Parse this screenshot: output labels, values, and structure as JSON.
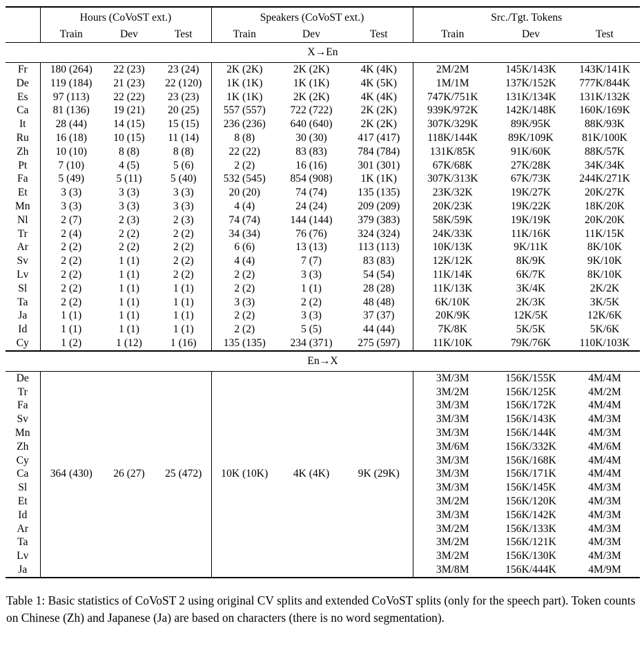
{
  "colors": {
    "text": "#000000",
    "background": "#ffffff",
    "rule": "#000000"
  },
  "table": {
    "column_groups": [
      "Hours (CoVoST ext.)",
      "Speakers (CoVoST ext.)",
      "Src./Tgt. Tokens"
    ],
    "subheaders": [
      "Train",
      "Dev",
      "Test",
      "Train",
      "Dev",
      "Test",
      "Train",
      "Dev",
      "Test"
    ],
    "sections": [
      {
        "title": "X→En",
        "rows": [
          {
            "lang": "Fr",
            "hours": [
              "180 (264)",
              "22 (23)",
              "23 (24)"
            ],
            "speakers": [
              "2K (2K)",
              "2K (2K)",
              "4K (4K)"
            ],
            "tokens": [
              "2M/2M",
              "145K/143K",
              "143K/141K"
            ]
          },
          {
            "lang": "De",
            "hours": [
              "119 (184)",
              "21 (23)",
              "22 (120)"
            ],
            "speakers": [
              "1K (1K)",
              "1K (1K)",
              "4K (5K)"
            ],
            "tokens": [
              "1M/1M",
              "137K/152K",
              "777K/844K"
            ]
          },
          {
            "lang": "Es",
            "hours": [
              "97 (113)",
              "22 (22)",
              "23 (23)"
            ],
            "speakers": [
              "1K (1K)",
              "2K (2K)",
              "4K (4K)"
            ],
            "tokens": [
              "747K/751K",
              "131K/134K",
              "131K/132K"
            ]
          },
          {
            "lang": "Ca",
            "hours": [
              "81 (136)",
              "19 (21)",
              "20 (25)"
            ],
            "speakers": [
              "557 (557)",
              "722 (722)",
              "2K (2K)"
            ],
            "tokens": [
              "939K/972K",
              "142K/148K",
              "160K/169K"
            ]
          },
          {
            "lang": "It",
            "hours": [
              "28 (44)",
              "14 (15)",
              "15 (15)"
            ],
            "speakers": [
              "236 (236)",
              "640 (640)",
              "2K (2K)"
            ],
            "tokens": [
              "307K/329K",
              "89K/95K",
              "88K/93K"
            ]
          },
          {
            "lang": "Ru",
            "hours": [
              "16 (18)",
              "10 (15)",
              "11 (14)"
            ],
            "speakers": [
              "8 (8)",
              "30 (30)",
              "417 (417)"
            ],
            "tokens": [
              "118K/144K",
              "89K/109K",
              "81K/100K"
            ]
          },
          {
            "lang": "Zh",
            "hours": [
              "10 (10)",
              "8 (8)",
              "8 (8)"
            ],
            "speakers": [
              "22 (22)",
              "83 (83)",
              "784 (784)"
            ],
            "tokens": [
              "131K/85K",
              "91K/60K",
              "88K/57K"
            ]
          },
          {
            "lang": "Pt",
            "hours": [
              "7 (10)",
              "4 (5)",
              "5 (6)"
            ],
            "speakers": [
              "2 (2)",
              "16 (16)",
              "301 (301)"
            ],
            "tokens": [
              "67K/68K",
              "27K/28K",
              "34K/34K"
            ]
          },
          {
            "lang": "Fa",
            "hours": [
              "5 (49)",
              "5 (11)",
              "5 (40)"
            ],
            "speakers": [
              "532 (545)",
              "854 (908)",
              "1K (1K)"
            ],
            "tokens": [
              "307K/313K",
              "67K/73K",
              "244K/271K"
            ]
          },
          {
            "lang": "Et",
            "hours": [
              "3 (3)",
              "3 (3)",
              "3 (3)"
            ],
            "speakers": [
              "20 (20)",
              "74 (74)",
              "135 (135)"
            ],
            "tokens": [
              "23K/32K",
              "19K/27K",
              "20K/27K"
            ]
          },
          {
            "lang": "Mn",
            "hours": [
              "3 (3)",
              "3 (3)",
              "3 (3)"
            ],
            "speakers": [
              "4 (4)",
              "24 (24)",
              "209 (209)"
            ],
            "tokens": [
              "20K/23K",
              "19K/22K",
              "18K/20K"
            ]
          },
          {
            "lang": "Nl",
            "hours": [
              "2 (7)",
              "2 (3)",
              "2 (3)"
            ],
            "speakers": [
              "74 (74)",
              "144 (144)",
              "379 (383)"
            ],
            "tokens": [
              "58K/59K",
              "19K/19K",
              "20K/20K"
            ]
          },
          {
            "lang": "Tr",
            "hours": [
              "2 (4)",
              "2 (2)",
              "2 (2)"
            ],
            "speakers": [
              "34 (34)",
              "76 (76)",
              "324 (324)"
            ],
            "tokens": [
              "24K/33K",
              "11K/16K",
              "11K/15K"
            ]
          },
          {
            "lang": "Ar",
            "hours": [
              "2 (2)",
              "2 (2)",
              "2 (2)"
            ],
            "speakers": [
              "6 (6)",
              "13 (13)",
              "113 (113)"
            ],
            "tokens": [
              "10K/13K",
              "9K/11K",
              "8K/10K"
            ]
          },
          {
            "lang": "Sv",
            "hours": [
              "2 (2)",
              "1 (1)",
              "2 (2)"
            ],
            "speakers": [
              "4 (4)",
              "7 (7)",
              "83 (83)"
            ],
            "tokens": [
              "12K/12K",
              "8K/9K",
              "9K/10K"
            ]
          },
          {
            "lang": "Lv",
            "hours": [
              "2 (2)",
              "1 (1)",
              "2 (2)"
            ],
            "speakers": [
              "2 (2)",
              "3 (3)",
              "54 (54)"
            ],
            "tokens": [
              "11K/14K",
              "6K/7K",
              "8K/10K"
            ]
          },
          {
            "lang": "Sl",
            "hours": [
              "2 (2)",
              "1 (1)",
              "1 (1)"
            ],
            "speakers": [
              "2 (2)",
              "1 (1)",
              "28 (28)"
            ],
            "tokens": [
              "11K/13K",
              "3K/4K",
              "2K/2K"
            ]
          },
          {
            "lang": "Ta",
            "hours": [
              "2 (2)",
              "1 (1)",
              "1 (1)"
            ],
            "speakers": [
              "3 (3)",
              "2 (2)",
              "48 (48)"
            ],
            "tokens": [
              "6K/10K",
              "2K/3K",
              "3K/5K"
            ]
          },
          {
            "lang": "Ja",
            "hours": [
              "1 (1)",
              "1 (1)",
              "1 (1)"
            ],
            "speakers": [
              "2 (2)",
              "3 (3)",
              "37 (37)"
            ],
            "tokens": [
              "20K/9K",
              "12K/5K",
              "12K/6K"
            ]
          },
          {
            "lang": "Id",
            "hours": [
              "1 (1)",
              "1 (1)",
              "1 (1)"
            ],
            "speakers": [
              "2 (2)",
              "5 (5)",
              "44 (44)"
            ],
            "tokens": [
              "7K/8K",
              "5K/5K",
              "5K/6K"
            ]
          },
          {
            "lang": "Cy",
            "hours": [
              "1 (2)",
              "1 (12)",
              "1 (16)"
            ],
            "speakers": [
              "135 (135)",
              "234 (371)",
              "275 (597)"
            ],
            "tokens": [
              "11K/10K",
              "79K/76K",
              "110K/103K"
            ]
          }
        ]
      },
      {
        "title": "En→X",
        "rows": [
          {
            "lang": "De",
            "hours": [
              "",
              "",
              ""
            ],
            "speakers": [
              "",
              "",
              ""
            ],
            "tokens": [
              "3M/3M",
              "156K/155K",
              "4M/4M"
            ]
          },
          {
            "lang": "Tr",
            "hours": [
              "",
              "",
              ""
            ],
            "speakers": [
              "",
              "",
              ""
            ],
            "tokens": [
              "3M/2M",
              "156K/125K",
              "4M/2M"
            ]
          },
          {
            "lang": "Fa",
            "hours": [
              "",
              "",
              ""
            ],
            "speakers": [
              "",
              "",
              ""
            ],
            "tokens": [
              "3M/3M",
              "156K/172K",
              "4M/4M"
            ]
          },
          {
            "lang": "Sv",
            "hours": [
              "",
              "",
              ""
            ],
            "speakers": [
              "",
              "",
              ""
            ],
            "tokens": [
              "3M/3M",
              "156K/143K",
              "4M/3M"
            ]
          },
          {
            "lang": "Mn",
            "hours": [
              "",
              "",
              ""
            ],
            "speakers": [
              "",
              "",
              ""
            ],
            "tokens": [
              "3M/3M",
              "156K/144K",
              "4M/3M"
            ]
          },
          {
            "lang": "Zh",
            "hours": [
              "",
              "",
              ""
            ],
            "speakers": [
              "",
              "",
              ""
            ],
            "tokens": [
              "3M/6M",
              "156K/332K",
              "4M/6M"
            ]
          },
          {
            "lang": "Cy",
            "hours": [
              "",
              "",
              ""
            ],
            "speakers": [
              "",
              "",
              ""
            ],
            "tokens": [
              "3M/3M",
              "156K/168K",
              "4M/4M"
            ]
          },
          {
            "lang": "Ca",
            "hours": [
              "364 (430)",
              "26 (27)",
              "25 (472)"
            ],
            "speakers": [
              "10K (10K)",
              "4K (4K)",
              "9K (29K)"
            ],
            "tokens": [
              "3M/3M",
              "156K/171K",
              "4M/4M"
            ]
          },
          {
            "lang": "Sl",
            "hours": [
              "",
              "",
              ""
            ],
            "speakers": [
              "",
              "",
              ""
            ],
            "tokens": [
              "3M/3M",
              "156K/145K",
              "4M/3M"
            ]
          },
          {
            "lang": "Et",
            "hours": [
              "",
              "",
              ""
            ],
            "speakers": [
              "",
              "",
              ""
            ],
            "tokens": [
              "3M/2M",
              "156K/120K",
              "4M/3M"
            ]
          },
          {
            "lang": "Id",
            "hours": [
              "",
              "",
              ""
            ],
            "speakers": [
              "",
              "",
              ""
            ],
            "tokens": [
              "3M/3M",
              "156K/142K",
              "4M/3M"
            ]
          },
          {
            "lang": "Ar",
            "hours": [
              "",
              "",
              ""
            ],
            "speakers": [
              "",
              "",
              ""
            ],
            "tokens": [
              "3M/2M",
              "156K/133K",
              "4M/3M"
            ]
          },
          {
            "lang": "Ta",
            "hours": [
              "",
              "",
              ""
            ],
            "speakers": [
              "",
              "",
              ""
            ],
            "tokens": [
              "3M/2M",
              "156K/121K",
              "4M/3M"
            ]
          },
          {
            "lang": "Lv",
            "hours": [
              "",
              "",
              ""
            ],
            "speakers": [
              "",
              "",
              ""
            ],
            "tokens": [
              "3M/2M",
              "156K/130K",
              "4M/3M"
            ]
          },
          {
            "lang": "Ja",
            "hours": [
              "",
              "",
              ""
            ],
            "speakers": [
              "",
              "",
              ""
            ],
            "tokens": [
              "3M/8M",
              "156K/444K",
              "4M/9M"
            ]
          }
        ]
      }
    ]
  },
  "caption": "Table 1: Basic statistics of CoVoST 2 using original CV splits and extended CoVoST splits (only for the speech part). Token counts on Chinese (Zh) and Japanese (Ja) are based on characters (there is no word segmentation)."
}
